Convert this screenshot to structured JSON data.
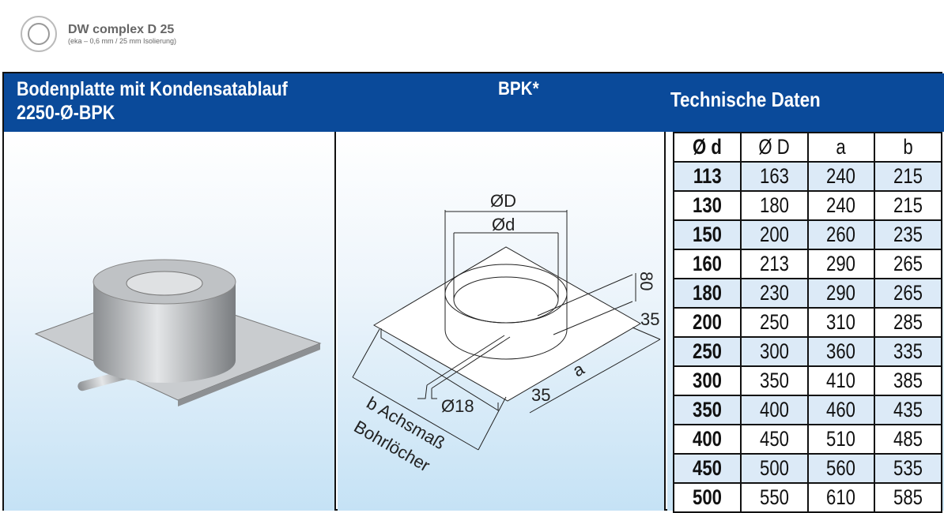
{
  "brand": {
    "title": "DW complex D 25",
    "subtitle": "(eka – 0,6 mm / 25 mm Isolierung)"
  },
  "header": {
    "product": "Bodenplatte mit Kondensatablauf",
    "code": "2250-Ø-BPK",
    "short": "BPK*",
    "tech": "Technische Daten"
  },
  "diagram": {
    "dD": "ØD",
    "dd": "Ød",
    "h80": "80",
    "m35a": "35",
    "m35b": "35",
    "a": "a",
    "d18": "Ø18",
    "b1": "b Achsmaß",
    "b2": "Bohrlöcher"
  },
  "table": {
    "headers": [
      "Ø d",
      "Ø D",
      "a",
      "b"
    ],
    "rows": [
      [
        "113",
        "163",
        "240",
        "215"
      ],
      [
        "130",
        "180",
        "240",
        "215"
      ],
      [
        "150",
        "200",
        "260",
        "235"
      ],
      [
        "160",
        "213",
        "290",
        "265"
      ],
      [
        "180",
        "230",
        "290",
        "265"
      ],
      [
        "200",
        "250",
        "310",
        "285"
      ],
      [
        "250",
        "300",
        "360",
        "335"
      ],
      [
        "300",
        "350",
        "410",
        "385"
      ],
      [
        "350",
        "400",
        "460",
        "435"
      ],
      [
        "400",
        "450",
        "510",
        "485"
      ],
      [
        "450",
        "500",
        "560",
        "535"
      ],
      [
        "500",
        "550",
        "610",
        "585"
      ]
    ]
  }
}
